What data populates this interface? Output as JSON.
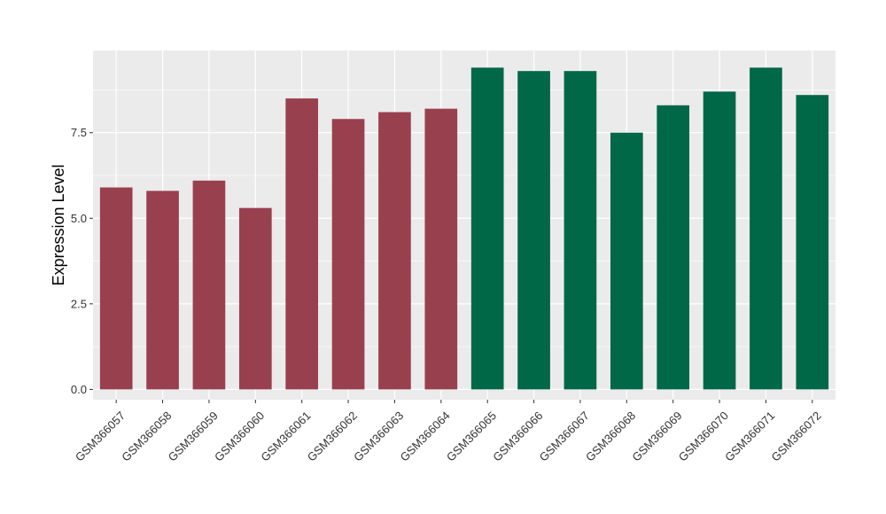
{
  "chart_data": {
    "type": "bar",
    "title": "",
    "xlabel": "",
    "ylabel": "Expression Level",
    "ylim": [
      -0.3,
      9.9
    ],
    "yticks": [
      "0.0",
      "2.5",
      "5.0",
      "7.5"
    ],
    "ytick_values": [
      0,
      2.5,
      5.0,
      7.5
    ],
    "grid": true,
    "legend": "none",
    "panel_background": "#EBEBEB",
    "grid_color": "#FFFFFF",
    "categories": [
      "GSM366057",
      "GSM366058",
      "GSM366059",
      "GSM366060",
      "GSM366061",
      "GSM366062",
      "GSM366063",
      "GSM366064",
      "GSM366065",
      "GSM366066",
      "GSM366067",
      "GSM366068",
      "GSM366069",
      "GSM366070",
      "GSM366071",
      "GSM366072"
    ],
    "values": [
      5.9,
      5.8,
      6.1,
      5.3,
      8.5,
      7.9,
      8.1,
      8.2,
      9.4,
      9.3,
      9.3,
      7.5,
      8.3,
      8.7,
      9.4,
      8.6
    ],
    "bar_colors": [
      "#99404F",
      "#99404F",
      "#99404F",
      "#99404F",
      "#99404F",
      "#99404F",
      "#99404F",
      "#99404F",
      "#006747",
      "#006747",
      "#006747",
      "#006747",
      "#006747",
      "#006747",
      "#006747",
      "#006747"
    ]
  }
}
